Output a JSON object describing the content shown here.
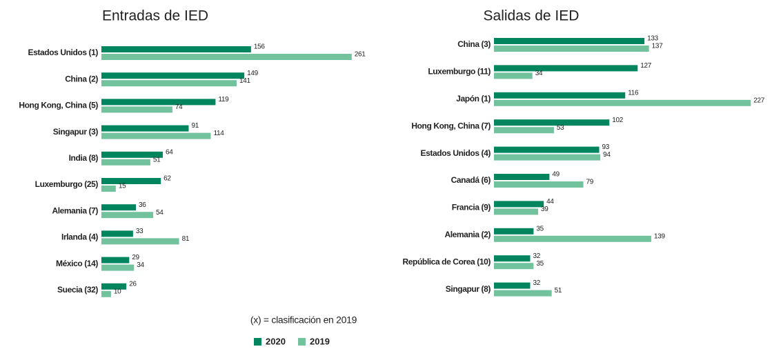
{
  "chart_data": [
    {
      "type": "bar",
      "orientation": "horizontal",
      "title": "Entradas de IED",
      "categories": [
        "Estados Unidos (1)",
        "China (2)",
        "Hong Kong, China (5)",
        "Singapur (3)",
        "India (8)",
        "Luxemburgo (25)",
        "Alemania (7)",
        "Irlanda (4)",
        "México (14)",
        "Suecia (32)"
      ],
      "series": [
        {
          "name": "2020",
          "color": "#00855f",
          "values": [
            156,
            149,
            119,
            91,
            64,
            62,
            36,
            33,
            29,
            26
          ]
        },
        {
          "name": "2019",
          "color": "#72c29e",
          "values": [
            261,
            141,
            74,
            114,
            51,
            15,
            54,
            81,
            34,
            10
          ]
        }
      ]
    },
    {
      "type": "bar",
      "orientation": "horizontal",
      "title": "Salidas de IED",
      "categories": [
        "China (3)",
        "Luxemburgo (11)",
        "Japón (1)",
        "Hong Kong, China (7)",
        "Estados Unidos (4)",
        "Canadá (6)",
        "Francia (9)",
        "Alemania (2)",
        "República de Corea (10)",
        "Singapur (8)"
      ],
      "series": [
        {
          "name": "2020",
          "color": "#00855f",
          "values": [
            133,
            127,
            116,
            102,
            93,
            49,
            44,
            35,
            32,
            32
          ]
        },
        {
          "name": "2019",
          "color": "#72c29e",
          "values": [
            137,
            34,
            227,
            53,
            94,
            79,
            39,
            139,
            35,
            51
          ]
        }
      ]
    }
  ],
  "note": "(x) = clasificación en 2019"
}
